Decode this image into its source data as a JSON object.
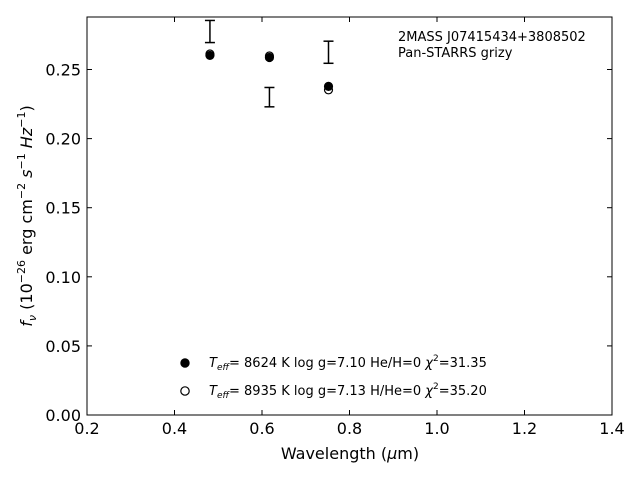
{
  "chart_data": {
    "type": "scatter",
    "xlabel_parts": {
      "text": "Wavelength (",
      "mu": "μ",
      "unit": "m)"
    },
    "ylabel_parts": {
      "f": "f",
      "nu": "ν",
      "open": " (10",
      "exp1": "−26",
      "mid": " erg cm",
      "exp2": "−2",
      "s": " s",
      "exp3": "−1",
      "hz": " Hz",
      "exp4": "−1",
      "close": ")"
    },
    "xlim": [
      0.2,
      1.4
    ],
    "ylim": [
      0.0,
      0.288
    ],
    "xticks": [
      0.2,
      0.4,
      0.6,
      0.8,
      1.0,
      1.2,
      1.4
    ],
    "xtick_labels": [
      "0.2",
      "0.4",
      "0.6",
      "0.8",
      "1.0",
      "1.2",
      "1.4"
    ],
    "yticks": [
      0.0,
      0.05,
      0.1,
      0.15,
      0.2,
      0.25
    ],
    "ytick_labels": [
      "0.00",
      "0.05",
      "0.10",
      "0.15",
      "0.20",
      "0.25"
    ],
    "grid": false,
    "annotation": {
      "line1": "2MASS J07415434+3808502",
      "line2": "Pan-STARRS grizy"
    },
    "observed": {
      "x": [
        0.481,
        0.617,
        0.752
      ],
      "y": [
        0.2775,
        0.23,
        0.2625
      ],
      "yerr": [
        0.008,
        0.007,
        0.008
      ]
    },
    "series": [
      {
        "marker": "filled",
        "x": [
          0.481,
          0.617,
          0.752
        ],
        "y": [
          0.2602,
          0.2587,
          0.2378
        ],
        "legend": {
          "teff_sym": "T",
          "teff_sub": "eff",
          "teff_text": "=  8624 K  log g=7.10  He/H=0  ",
          "chi_sym": "χ",
          "chi_sup": "2",
          "chi_val": "=31.35"
        }
      },
      {
        "marker": "open",
        "x": [
          0.481,
          0.617,
          0.752
        ],
        "y": [
          0.2612,
          0.2598,
          0.2353
        ],
        "legend": {
          "teff_sym": "T",
          "teff_sub": "eff",
          "teff_text": "=  8935 K  log g=7.13  H/He=0  ",
          "chi_sym": "χ",
          "chi_sup": "2",
          "chi_val": "=35.20"
        }
      }
    ],
    "legend_placement": "bottom-center",
    "colors": {
      "marker": "#000000",
      "errorbar": "#000000",
      "axes": "#000000"
    }
  }
}
